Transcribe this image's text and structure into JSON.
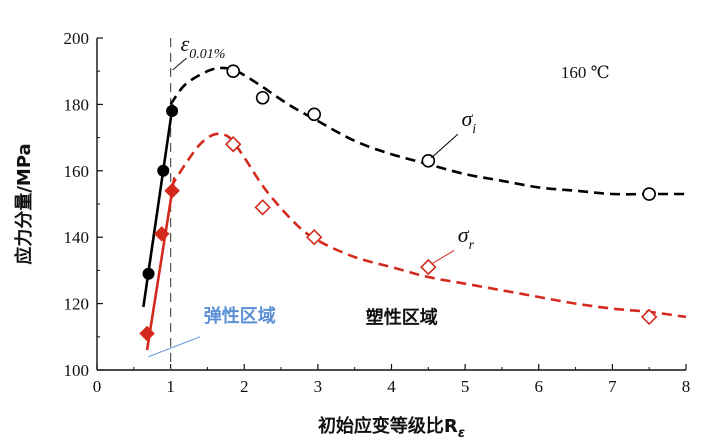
{
  "chart_data": {
    "type": "scatter",
    "title": "",
    "xlabel": "初始应变等级比R",
    "xlabel_sub": "ε",
    "ylabel": "应力分量/MPa",
    "xlim": [
      0,
      8
    ],
    "ylim": [
      100,
      200
    ],
    "xticks": [
      0,
      1,
      2,
      3,
      4,
      5,
      6,
      7,
      8
    ],
    "yticks": [
      100,
      120,
      140,
      160,
      180,
      200
    ],
    "grid": false,
    "vline": {
      "x": 1,
      "label_main": "ε",
      "label_sub": "0.01%"
    },
    "temperature_label": "160 ℃",
    "regions": {
      "elastic": "弹性区域",
      "plastic": "塑性区域"
    },
    "series": [
      {
        "name_main": "σ",
        "name_sub": "i",
        "color": "#000000",
        "elastic_points": [
          [
            0.7,
            129
          ],
          [
            0.9,
            160
          ],
          [
            1.02,
            178
          ]
        ],
        "elastic_fit": [
          [
            0.63,
            119
          ],
          [
            1.03,
            180
          ]
        ],
        "plastic_points": [
          [
            1.85,
            190
          ],
          [
            2.25,
            182
          ],
          [
            2.95,
            177
          ],
          [
            4.5,
            163
          ],
          [
            7.5,
            153
          ]
        ],
        "fit_curve": [
          [
            1.0,
            180
          ],
          [
            1.2,
            186
          ],
          [
            1.5,
            190
          ],
          [
            1.7,
            191
          ],
          [
            1.9,
            190
          ],
          [
            2.2,
            186
          ],
          [
            2.6,
            180
          ],
          [
            3.0,
            175
          ],
          [
            3.5,
            169
          ],
          [
            4.0,
            165
          ],
          [
            4.5,
            162
          ],
          [
            5.0,
            159
          ],
          [
            5.5,
            157
          ],
          [
            6.0,
            155
          ],
          [
            6.5,
            154
          ],
          [
            7.0,
            153
          ],
          [
            7.5,
            153
          ],
          [
            8.0,
            153
          ]
        ]
      },
      {
        "name_main": "σ",
        "name_sub": "r",
        "color": "#d42a1e",
        "elastic_points": [
          [
            0.68,
            111
          ],
          [
            0.88,
            141
          ],
          [
            1.02,
            154
          ]
        ],
        "elastic_fit": [
          [
            0.68,
            106
          ],
          [
            1.05,
            158
          ]
        ],
        "plastic_points": [
          [
            1.85,
            168
          ],
          [
            2.25,
            149
          ],
          [
            2.95,
            140
          ],
          [
            4.5,
            131
          ],
          [
            7.5,
            116
          ]
        ],
        "fit_curve": [
          [
            1.0,
            155
          ],
          [
            1.2,
            162
          ],
          [
            1.4,
            168
          ],
          [
            1.6,
            171
          ],
          [
            1.8,
            170
          ],
          [
            2.0,
            164
          ],
          [
            2.3,
            154
          ],
          [
            2.7,
            144
          ],
          [
            3.0,
            139
          ],
          [
            3.5,
            134
          ],
          [
            4.0,
            131
          ],
          [
            4.5,
            128
          ],
          [
            5.0,
            126
          ],
          [
            5.5,
            124
          ],
          [
            6.0,
            122
          ],
          [
            6.5,
            120
          ],
          [
            7.0,
            118.5
          ],
          [
            7.5,
            117.5
          ],
          [
            8.0,
            116
          ]
        ]
      }
    ]
  }
}
